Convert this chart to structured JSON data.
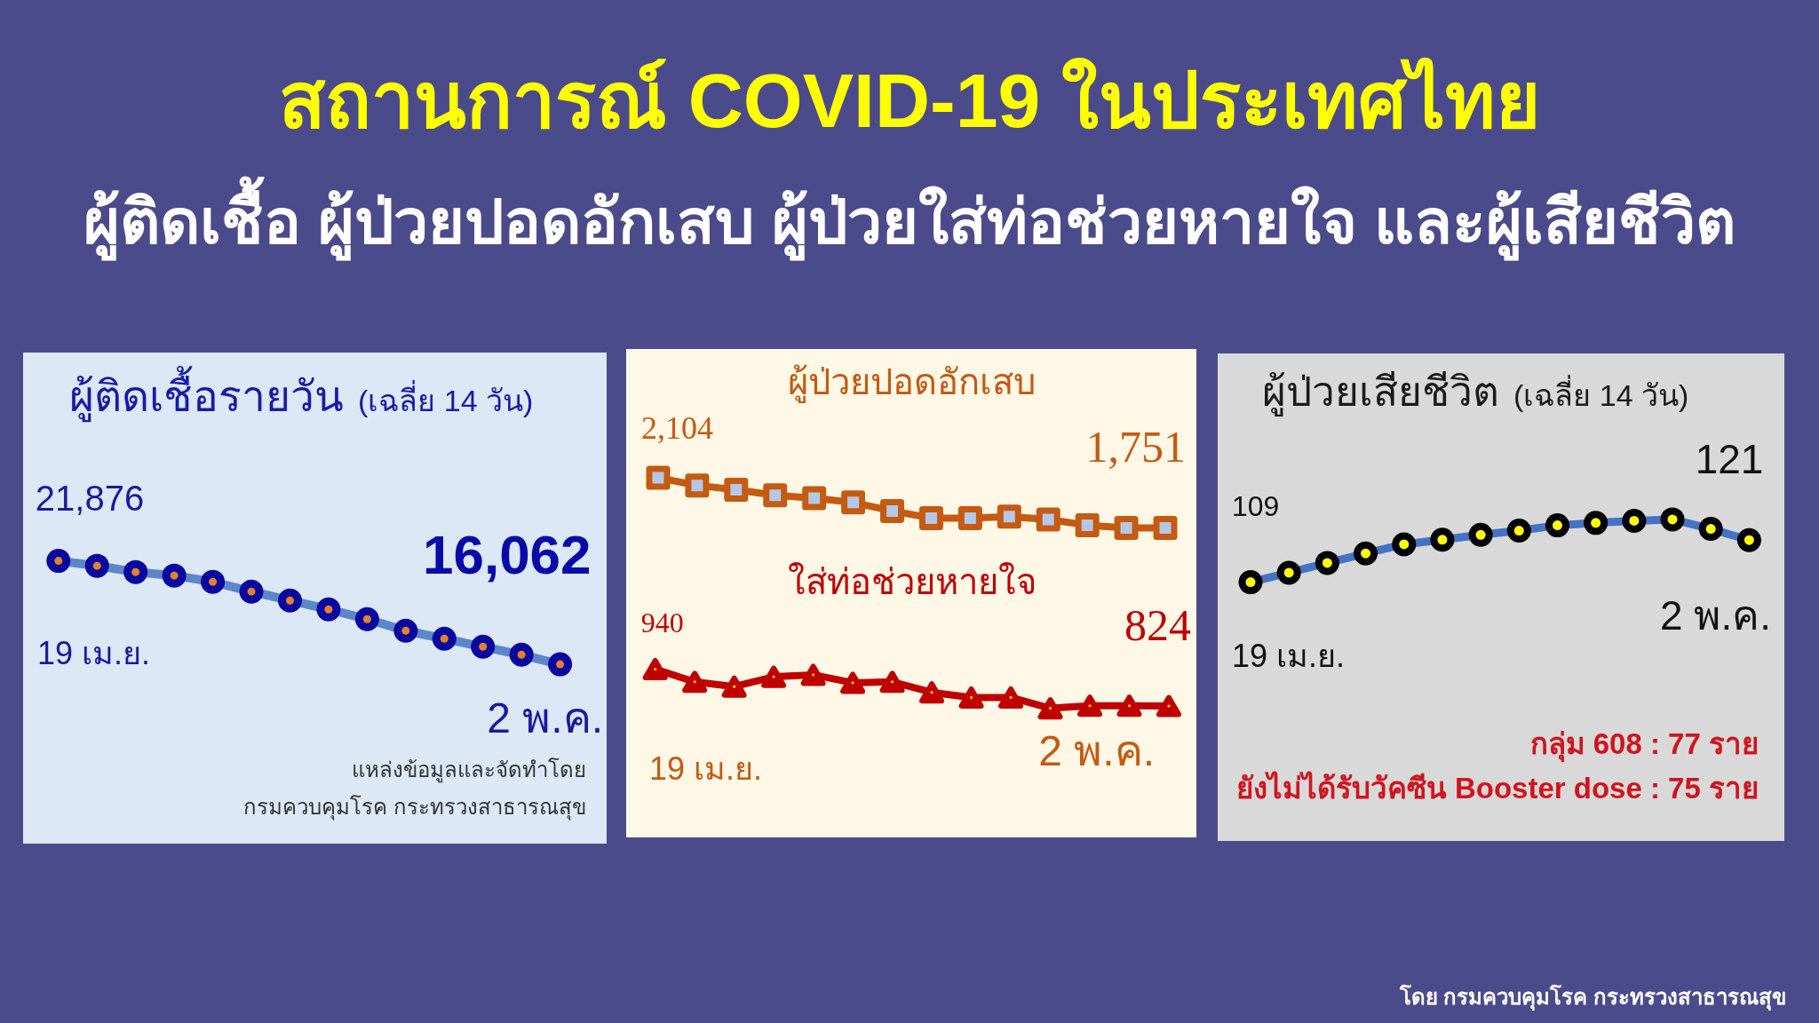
{
  "chart_data": [
    {
      "type": "other",
      "title": "สถานการณ์ COVID-19 ในประเทศไทย",
      "subtitle": "ผู้ติดเชื้อ ผู้ป่วยปอดอักเสบ ผู้ป่วยใส่ท่อช่วยหายใจ และผู้เสียชีวิต",
      "annotations": [
        "โดย กรมควบคุมโรค กระทรวงสาธารณสุข"
      ]
    },
    {
      "type": "line",
      "title": "ผู้ติดเชื้อรายวัน",
      "subtitle": "(เฉลี่ย 14 วัน)",
      "categories": [
        null,
        null,
        null,
        null,
        null,
        null,
        null,
        null,
        null,
        null,
        null,
        null,
        null,
        null
      ],
      "marker": "circle",
      "series": [
        {
          "color": "#5b87c9",
          "values": [
            21876,
            21600,
            21250,
            21050,
            20700,
            20150,
            19650,
            19150,
            18600,
            17950,
            17500,
            17050,
            16600,
            16062
          ],
          "value_labels": [
            "21,876",
            null,
            null,
            null,
            null,
            null,
            null,
            null,
            null,
            null,
            null,
            null,
            null,
            "16,062"
          ]
        }
      ],
      "annotations": [
        "19 เม.ย.",
        "2 พ.ค.",
        "แหล่งข้อมูลและจัดทำโดย",
        "กรมควบคุมโรค กระทรวงสาธารณสุข"
      ]
    },
    {
      "type": "line",
      "title": "ผู้ป่วยปอดอักเสบ",
      "categories": [
        null,
        null,
        null,
        null,
        null,
        null,
        null,
        null,
        null,
        null,
        null,
        null,
        null,
        null
      ],
      "marker": "square",
      "series": [
        {
          "color": "#c55a11",
          "values": [
            2104,
            2050,
            2020,
            1980,
            1960,
            1930,
            1870,
            1820,
            1820,
            1830,
            1810,
            1770,
            1750,
            1751
          ],
          "value_labels": [
            "2,104",
            null,
            null,
            null,
            null,
            null,
            null,
            null,
            null,
            null,
            null,
            null,
            null,
            "1,751"
          ]
        }
      ]
    },
    {
      "type": "line",
      "title": "ใส่ท่อช่วยหายใจ",
      "categories": [
        null,
        null,
        null,
        null,
        null,
        null,
        null,
        null,
        null,
        null,
        null,
        null,
        null,
        null
      ],
      "marker": "triangle",
      "series": [
        {
          "color": "#c00000",
          "values": [
            940,
            900,
            885,
            916,
            922,
            897,
            900,
            867,
            851,
            851,
            817,
            825,
            825,
            824
          ],
          "value_labels": [
            "940",
            null,
            null,
            null,
            null,
            null,
            null,
            null,
            null,
            null,
            null,
            null,
            null,
            "824"
          ]
        }
      ],
      "annotations": [
        "19 เม.ย.",
        "2 พ.ค."
      ]
    },
    {
      "type": "line",
      "title": "ผู้ป่วยเสียชีวิต",
      "subtitle": "(เฉลี่ย 14 วัน)",
      "categories": [
        null,
        null,
        null,
        null,
        null,
        null,
        null,
        null,
        null,
        null,
        null,
        null,
        null,
        null
      ],
      "marker": "circle",
      "series": [
        {
          "color": "#4472c4",
          "values": [
            109,
            111.7,
            114.5,
            117.2,
            119.8,
            121.1,
            122.5,
            123.7,
            125.2,
            125.9,
            126.5,
            126.9,
            124.2,
            121
          ],
          "value_labels": [
            "109",
            null,
            null,
            null,
            null,
            null,
            null,
            null,
            null,
            null,
            null,
            null,
            null,
            "121"
          ]
        }
      ],
      "annotations": [
        "19 เม.ย.",
        "2 พ.ค.",
        "กลุ่ม 608 : 77 ราย",
        "ยังไม่ได้รับวัคซีน Booster dose : 75 ราย"
      ]
    }
  ]
}
